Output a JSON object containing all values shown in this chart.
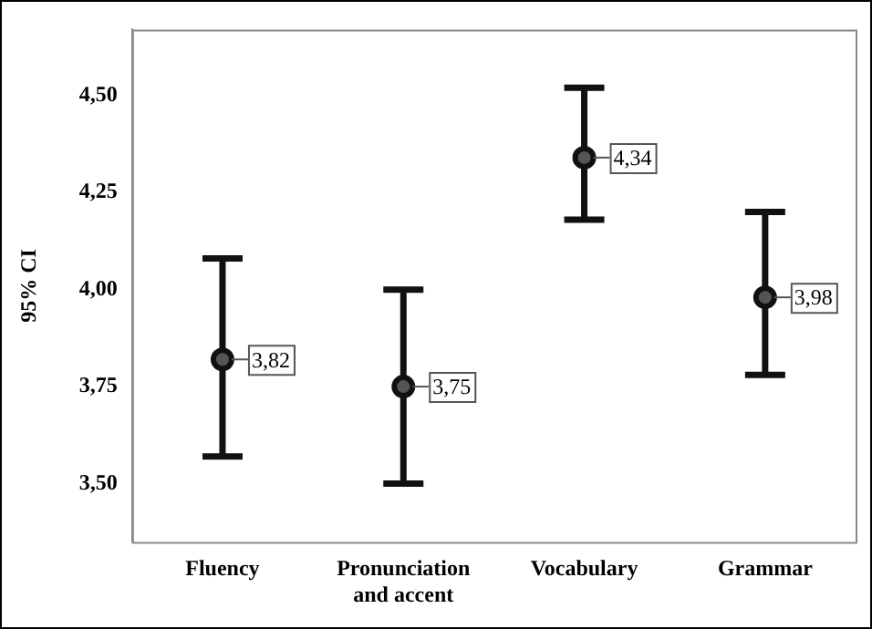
{
  "chart_data": {
    "type": "scatter",
    "ylabel": "95% CI",
    "categories": [
      "Fluency",
      "Pronunciation and accent",
      "Vocabulary",
      "Grammar"
    ],
    "values": [
      3.82,
      3.75,
      4.34,
      3.98
    ],
    "errors": [
      [
        3.57,
        4.08
      ],
      [
        3.5,
        4.0
      ],
      [
        4.18,
        4.52
      ],
      [
        3.78,
        4.2
      ]
    ],
    "value_labels": [
      "3,82",
      "3,75",
      "4,34",
      "3,98"
    ],
    "color": "#555555",
    "marker": "circle",
    "ylim": [
      3.35,
      4.67
    ],
    "yticks": [
      {
        "value": 3.5,
        "label": "3,50"
      },
      {
        "value": 3.75,
        "label": "3,75"
      },
      {
        "value": 4.0,
        "label": "4,00"
      },
      {
        "value": 4.25,
        "label": "4,25"
      },
      {
        "value": 4.5,
        "label": "4,50"
      }
    ],
    "grid": false,
    "legend": false
  }
}
